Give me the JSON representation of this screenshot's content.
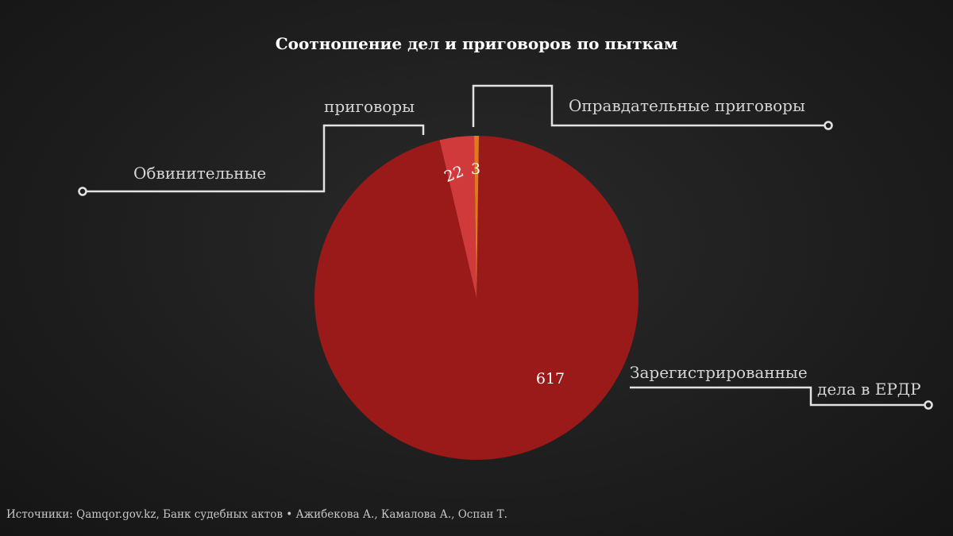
{
  "chart_data": {
    "type": "pie",
    "title": "Соотношение дел и приговоров по пыткам",
    "slices": [
      {
        "value": 617,
        "label_lines": [
          "Зарегистрированные",
          "дела в ЕРДР"
        ],
        "value_label": "617",
        "color": "#9a1a1a"
      },
      {
        "value": 22,
        "label_lines": [
          "Обвинительные",
          "приговоры"
        ],
        "value_label": "22",
        "color": "#d13a3a"
      },
      {
        "value": 3,
        "label_lines": [
          "Оправдательные приговоры"
        ],
        "value_label": "3",
        "color": "#e07a1a"
      }
    ]
  },
  "source": "Источники: Qamqor.gov.kz, Банк судебных актов • Ажибекова А., Камалова А., Оспан Т."
}
